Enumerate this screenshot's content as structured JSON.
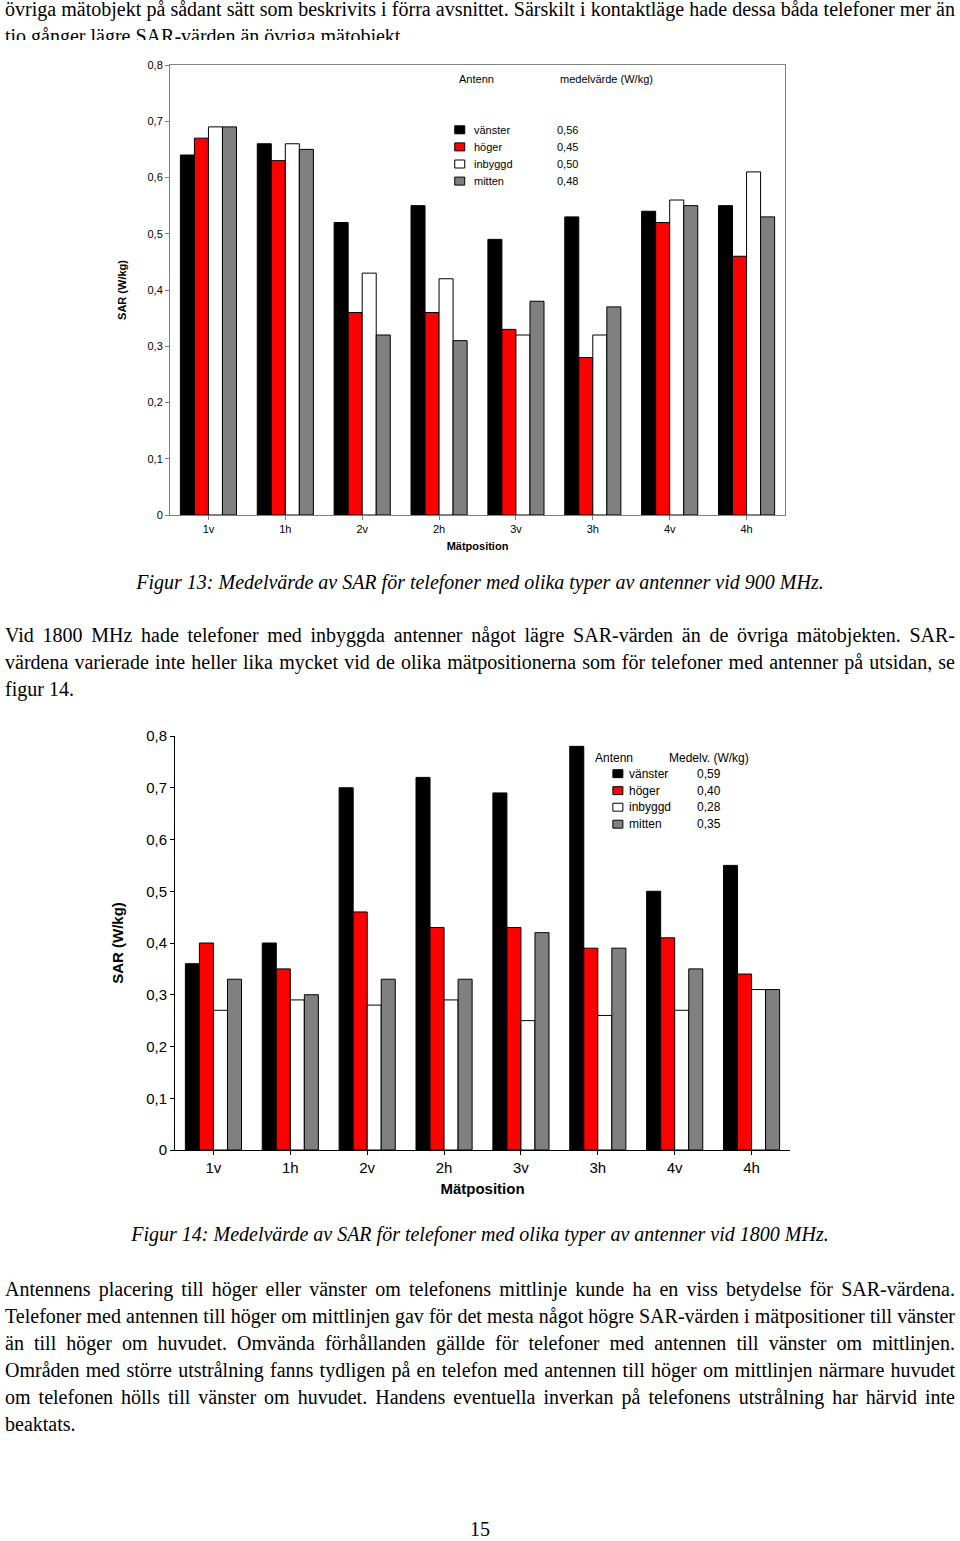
{
  "document": {
    "paragraph_1": "övriga mätobjekt på sådant sätt som beskrivits i förra avsnittet.  Särskilt i kontaktläge hade dessa båda telefoner mer än tio gånger lägre SAR-värden än övriga mätobjekt.",
    "caption_figure_13": "Figur 13: Medelvärde av SAR för telefoner med olika typer av antenner vid 900 MHz.",
    "paragraph_2": "Vid 1800 MHz hade telefoner med inbyggda antenner något lägre SAR-värden än de övriga mätobjekten. SAR-värdena varierade inte heller lika mycket vid de olika mätpositionerna som för telefoner med antenner på utsidan, se figur 14.",
    "caption_figure_14": "Figur 14: Medelvärde av  SAR för telefoner med olika typer av antenner vid 1800 MHz.",
    "paragraph_3": "Antennens placering till höger eller vänster om telefonens mittlinje kunde ha en viss betydelse för SAR-värdena. Telefoner med antennen till höger om mittlinjen gav för det mesta något högre SAR-värden i mätpositioner till vänster än till höger om huvudet. Omvända förhållanden gällde för telefoner med antennen till vänster om mittlinjen. Områden med större utstrålning fanns tydligen på en telefon med antennen till höger om mittlinjen närmare huvudet om telefonen hölls till vänster om huvudet. Handens eventuella inverkan på telefonens utstrålning har härvid inte beaktats.",
    "page_number": "15"
  },
  "chart_data": [
    {
      "type": "bar",
      "x_label": "Mätposition",
      "y_label": "SAR (W/kg)",
      "legend": "top",
      "legend_header": [
        "Antenn",
        "medelvärde (W/kg)"
      ],
      "categories": [
        "1v",
        "1h",
        "2v",
        "2h",
        "3v",
        "3h",
        "4v",
        "4h"
      ],
      "series": [
        {
          "name": "vänster",
          "color": "#000000",
          "mean": {
            "value": 0.56,
            "label": "0,56"
          },
          "values": [
            0.64,
            0.66,
            0.52,
            0.55,
            0.49,
            0.53,
            0.54,
            0.55
          ]
        },
        {
          "name": "höger",
          "color": "#ff0000",
          "mean": {
            "value": 0.45,
            "label": "0,45"
          },
          "values": [
            0.67,
            0.63,
            0.36,
            0.36,
            0.33,
            0.28,
            0.52,
            0.46
          ]
        },
        {
          "name": "inbyggd",
          "color": "#ffffff",
          "mean": {
            "value": 0.5,
            "label": "0,50"
          },
          "values": [
            0.69,
            0.66,
            0.43,
            0.42,
            0.32,
            0.32,
            0.56,
            0.61
          ]
        },
        {
          "name": "mitten",
          "color": "#808080",
          "mean": {
            "value": 0.48,
            "label": "0,48"
          },
          "values": [
            0.69,
            0.65,
            0.32,
            0.31,
            0.38,
            0.37,
            0.55,
            0.53
          ]
        }
      ],
      "ylim": [
        0,
        0.8
      ],
      "yticks": [
        0,
        {
          "value": 0.1,
          "label": "0,1"
        },
        {
          "value": 0.2,
          "label": "0,2"
        },
        {
          "value": 0.3,
          "label": "0,3"
        },
        {
          "value": 0.4,
          "label": "0,4"
        },
        {
          "value": 0.5,
          "label": "0,5"
        },
        {
          "value": 0.6,
          "label": "0,6"
        },
        {
          "value": 0.7,
          "label": "0,7"
        },
        {
          "value": 0.8,
          "label": "0,8"
        }
      ],
      "grid": false
    },
    {
      "type": "bar",
      "x_label": "Mätposition",
      "y_label": "SAR (W/kg)",
      "legend": "top right",
      "legend_header": [
        "Antenn",
        "Medelv. (W/kg)"
      ],
      "categories": [
        "1v",
        "1h",
        "2v",
        "2h",
        "3v",
        "3h",
        "4v",
        "4h"
      ],
      "series": [
        {
          "name": "vänster",
          "color": "#000000",
          "mean": {
            "value": 0.59,
            "label": "0,59"
          },
          "values": [
            0.36,
            0.4,
            0.7,
            0.72,
            0.69,
            0.78,
            0.5,
            0.55
          ]
        },
        {
          "name": "höger",
          "color": "#ff0000",
          "mean": {
            "value": 0.4,
            "label": "0,40"
          },
          "values": [
            0.4,
            0.35,
            0.46,
            0.43,
            0.43,
            0.39,
            0.41,
            0.34
          ]
        },
        {
          "name": "inbyggd",
          "color": "#ffffff",
          "mean": {
            "value": 0.28,
            "label": "0,28"
          },
          "values": [
            0.27,
            0.29,
            0.28,
            0.29,
            0.25,
            0.26,
            0.27,
            0.31
          ]
        },
        {
          "name": "mitten",
          "color": "#808080",
          "mean": {
            "value": 0.35,
            "label": "0,35"
          },
          "values": [
            0.33,
            0.3,
            0.33,
            0.33,
            0.42,
            0.39,
            0.35,
            0.31
          ]
        }
      ],
      "ylim": [
        0,
        0.8
      ],
      "yticks": [
        0,
        {
          "value": 0.1,
          "label": "0,1"
        },
        {
          "value": 0.2,
          "label": "0,2"
        },
        {
          "value": 0.3,
          "label": "0,3"
        },
        {
          "value": 0.4,
          "label": "0,4"
        },
        {
          "value": 0.5,
          "label": "0,5"
        },
        {
          "value": 0.6,
          "label": "0,6"
        },
        {
          "value": 0.7,
          "label": "0,7"
        },
        {
          "value": 0.8,
          "label": "0,8"
        }
      ],
      "grid": false
    }
  ]
}
